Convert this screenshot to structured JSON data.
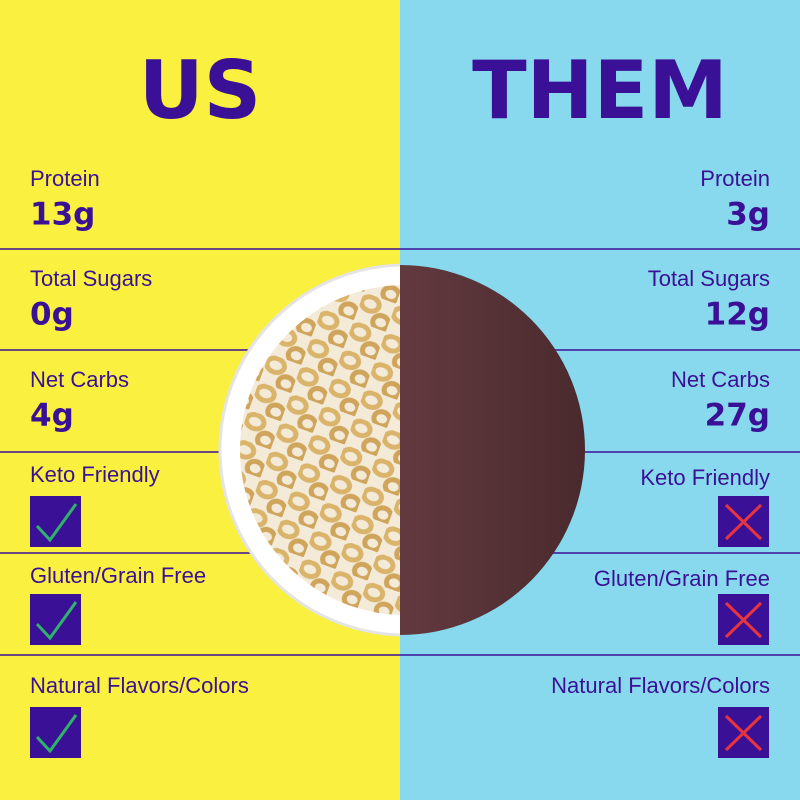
{
  "us": {
    "title": "US"
  },
  "them": {
    "title": "THEM"
  },
  "rows": [
    {
      "label": "Protein",
      "us": "13g",
      "them": "3g"
    },
    {
      "label": "Total Sugars",
      "us": "0g",
      "them": "12g"
    },
    {
      "label": "Net Carbs",
      "us": "4g",
      "them": "27g"
    },
    {
      "label": "Keto Friendly"
    },
    {
      "label": "Gluten/Grain Free"
    },
    {
      "label": "Natural Flavors/Colors"
    }
  ]
}
